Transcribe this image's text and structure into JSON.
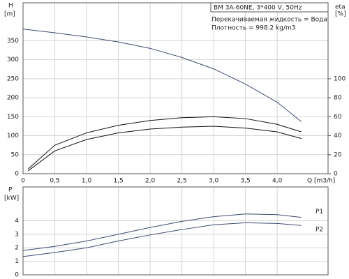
{
  "chart_data": [
    {
      "type": "line",
      "title": "BM 3A-60NE, 3*400 V, 50Hz",
      "annotations": [
        "Перекачиваемая жидкость = Вода",
        "Плотность = 998.2 kg/m3"
      ],
      "y_label": "H",
      "y_unit": "[m]",
      "y2_label": "eta",
      "y2_unit": "[%]",
      "x_label": "Q [m3/h]",
      "xlim": [
        0,
        4.8
      ],
      "xticks": [
        0,
        {
          "value": 0.5,
          "label": "0,5"
        },
        {
          "value": 1,
          "label": "1,0"
        },
        {
          "value": 1.5,
          "label": "1,5"
        },
        {
          "value": 2,
          "label": "2,0"
        },
        {
          "value": 2.5,
          "label": "2,5"
        },
        {
          "value": 3,
          "label": "3,0"
        },
        {
          "value": 3.5,
          "label": "3,5"
        },
        {
          "value": 4,
          "label": "4,0"
        }
      ],
      "ylim": [
        0,
        450
      ],
      "yticks": [
        0,
        50,
        100,
        150,
        200,
        250,
        300,
        350
      ],
      "y2lim": [
        0,
        180
      ],
      "y2ticks": [
        0,
        20,
        40,
        60,
        80,
        100
      ],
      "grid": true,
      "series": [
        {
          "color": "#3c4a6e",
          "x": [
            0,
            0.5,
            1,
            1.5,
            2,
            2.5,
            3,
            3.5,
            4,
            4.38
          ],
          "values": [
            381,
            371,
            360,
            347,
            330,
            306,
            276,
            236,
            188,
            137
          ]
        },
        {
          "color": "#111111",
          "axis": "y2",
          "x": [
            0.08,
            0.5,
            1,
            1.5,
            2,
            2.5,
            3,
            3.5,
            4,
            4.38
          ],
          "values": [
            5,
            30,
            43,
            51,
            56,
            59,
            60,
            58,
            52,
            44
          ]
        },
        {
          "color": "#111111",
          "axis": "y2",
          "x": [
            0.08,
            0.5,
            1,
            1.5,
            2,
            2.5,
            3,
            3.5,
            4,
            4.38
          ],
          "values": [
            3,
            24,
            36,
            43,
            47,
            49,
            50,
            48,
            44,
            37
          ]
        }
      ]
    },
    {
      "type": "line",
      "y_label": "P",
      "y_unit": "[kW]",
      "xlim": [
        0,
        4.8
      ],
      "ylim": [
        0,
        6.5
      ],
      "yticks": [
        0,
        1,
        2,
        3,
        4
      ],
      "grid": true,
      "series": [
        {
          "name": "P1",
          "color": "#3c4a6e",
          "x": [
            0,
            0.5,
            1,
            1.5,
            2,
            2.5,
            3,
            3.5,
            4,
            4.38
          ],
          "values": [
            1.8,
            2.1,
            2.5,
            3.0,
            3.5,
            3.95,
            4.3,
            4.5,
            4.45,
            4.25
          ]
        },
        {
          "name": "P2",
          "color": "#3c4a6e",
          "x": [
            0,
            0.5,
            1,
            1.5,
            2,
            2.5,
            3,
            3.5,
            4,
            4.38
          ],
          "values": [
            1.35,
            1.65,
            2.0,
            2.5,
            2.95,
            3.35,
            3.7,
            3.85,
            3.8,
            3.65
          ]
        }
      ]
    }
  ]
}
